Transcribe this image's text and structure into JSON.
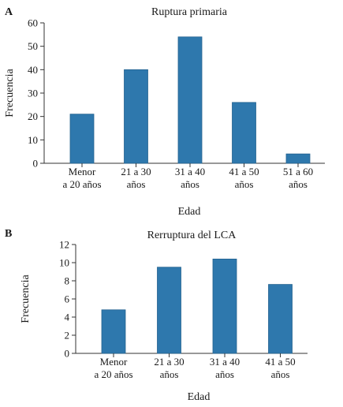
{
  "chart_data": [
    {
      "panel": "A",
      "type": "bar",
      "title": "Ruptura primaria",
      "xlabel": "Edad",
      "ylabel": "Frecuencia",
      "categories": [
        [
          "Menor",
          "a 20 años"
        ],
        [
          "21 a 30",
          "años"
        ],
        [
          "31 a 40",
          "años"
        ],
        [
          "41 a 50",
          "años"
        ],
        [
          "51 a 60",
          "años"
        ]
      ],
      "values": [
        21,
        40,
        54,
        26,
        4
      ],
      "ylim": [
        0,
        60
      ],
      "yticks": [
        0,
        10,
        20,
        30,
        40,
        50,
        60
      ],
      "bar_color": "#2e78ad",
      "grid": false
    },
    {
      "panel": "B",
      "type": "bar",
      "title": "Rerruptura del LCA",
      "xlabel": "Edad",
      "ylabel": "Frecuencia",
      "categories": [
        [
          "Menor",
          "a 20 años"
        ],
        [
          "21 a 30",
          "años"
        ],
        [
          "31 a 40",
          "años"
        ],
        [
          "41 a 50",
          "años"
        ]
      ],
      "values": [
        4.8,
        9.5,
        10.4,
        7.6
      ],
      "ylim": [
        0,
        12
      ],
      "yticks": [
        0,
        2,
        4,
        6,
        8,
        10,
        12
      ],
      "bar_color": "#2e78ad",
      "grid": false
    }
  ]
}
